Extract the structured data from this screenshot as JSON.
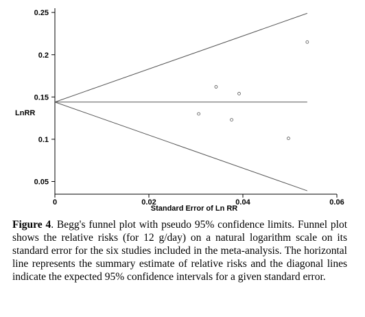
{
  "chart_data": {
    "type": "scatter",
    "title": "",
    "xlabel": "Standard Error of Ln RR",
    "ylabel": "LnRR",
    "xlim": [
      0,
      0.06
    ],
    "ylim": [
      0.035,
      0.255
    ],
    "x_ticks": [
      "0",
      "0.02",
      "0.04",
      "0.06"
    ],
    "y_ticks": [
      "0.05",
      "0.1",
      "0.15",
      "0.2",
      "0.25"
    ],
    "grid": false,
    "points": [
      {
        "x": 0.0306,
        "y": 0.13
      },
      {
        "x": 0.0343,
        "y": 0.162
      },
      {
        "x": 0.0376,
        "y": 0.123
      },
      {
        "x": 0.0392,
        "y": 0.154
      },
      {
        "x": 0.0497,
        "y": 0.101
      },
      {
        "x": 0.0537,
        "y": 0.215
      }
    ],
    "summary_estimate": 0.144,
    "line_x_end": 0.0537,
    "pseudo_ci_upper_end": 0.249,
    "pseudo_ci_lower_end": 0.039
  },
  "caption": {
    "label": "Figure 4",
    "text": ". Begg's funnel plot with pseudo 95% confidence limits. Funnel plot shows the relative risks (for 12 g/day) on a natural logarithm scale on its standard error for the six studies included in the meta-analysis. The horizontal line represents the summary estimate of relative risks and the diagonal lines indicate the expected 95% confidence intervals for a given standard error."
  }
}
